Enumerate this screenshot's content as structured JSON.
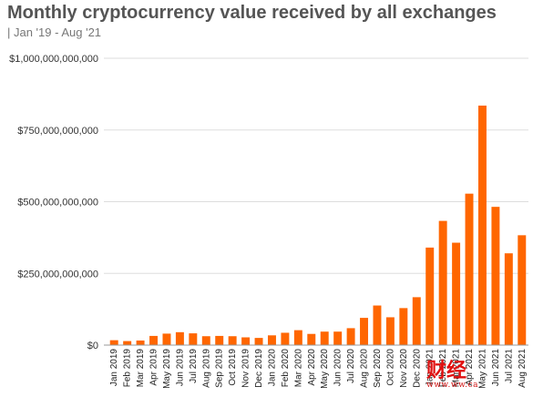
{
  "header": {
    "title": "Monthly cryptocurrency value received by all exchanges",
    "subtitle": "| Jan '19 - Aug '21"
  },
  "watermark": {
    "main": "财经",
    "sub": "www.ww.ca"
  },
  "colors": {
    "bar": "#ff6600",
    "grid": "#dddddd",
    "axis": "#999999"
  },
  "chart_data": {
    "type": "bar",
    "title": "Monthly cryptocurrency value received by all exchanges",
    "subtitle": "| Jan '19 - Aug '21",
    "xlabel": "",
    "ylabel": "",
    "ylim": [
      0,
      1000000000000
    ],
    "grid": true,
    "legend": "none",
    "yticks": [
      {
        "value": 0,
        "label": "$0"
      },
      {
        "value": 250000000000,
        "label": "$250,000,000,000"
      },
      {
        "value": 500000000000,
        "label": "$500,000,000,000"
      },
      {
        "value": 750000000000,
        "label": "$750,000,000,000"
      },
      {
        "value": 1000000000000,
        "label": "$1,000,000,000,000"
      }
    ],
    "categories": [
      "Jan 2019",
      "Feb 2019",
      "Mar 2019",
      "Apr 2019",
      "May 2019",
      "Jun 2019",
      "Jul 2019",
      "Aug 2019",
      "Sep 2019",
      "Oct 2019",
      "Nov 2019",
      "Dec 2019",
      "Jan 2020",
      "Feb 2020",
      "Mar 2020",
      "Apr 2020",
      "May 2020",
      "Jun 2020",
      "Jul 2020",
      "Aug 2020",
      "Sep 2020",
      "Oct 2020",
      "Nov 2020",
      "Dec 2020",
      "Jan 2021",
      "Feb 2021",
      "Mar 2021",
      "Apr 2021",
      "May 2021",
      "Jun 2021",
      "Jul 2021",
      "Aug 2021"
    ],
    "values": [
      17000000000,
      14000000000,
      16000000000,
      32000000000,
      40000000000,
      45000000000,
      41000000000,
      31000000000,
      32000000000,
      31000000000,
      27000000000,
      25000000000,
      34000000000,
      43000000000,
      52000000000,
      39000000000,
      47000000000,
      47000000000,
      59000000000,
      95000000000,
      138000000000,
      97000000000,
      129000000000,
      167000000000,
      340000000000,
      433000000000,
      357000000000,
      528000000000,
      835000000000,
      482000000000,
      320000000000,
      383000000000
    ]
  }
}
